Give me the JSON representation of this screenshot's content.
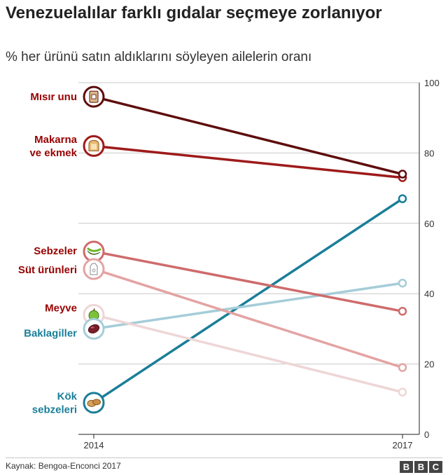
{
  "title": "Venezuelalılar farklı gıdalar seçmeye zorlanıyor",
  "subtitle": "% her ürünü satın aldıklarını söyleyen ailelerin oranı",
  "source": "Kaynak: Bengoa-Enconci 2017",
  "logo": [
    "B",
    "B",
    "C"
  ],
  "colors": {
    "Mısır unu": "#5e0c0c",
    "Makarna ve ekmek": "#9e1a1a",
    "Sebzeler": "#cf6b6b",
    "Süt ürünleri": "#e4a3a3",
    "Meyve": "#eed6d6",
    "Baklagiller": "#a5cdd8",
    "Kök sebzeleri": "#1a7e99",
    "label_red": "#990000",
    "label_teal": "#1a7e99"
  },
  "chart_data": {
    "type": "line",
    "x": [
      2014,
      2017
    ],
    "x_tick_labels": [
      "2014",
      "2017"
    ],
    "ylim": [
      0,
      100
    ],
    "y_ticks": [
      0,
      20,
      40,
      60,
      80,
      100
    ],
    "y_axis_side": "right",
    "grid": true,
    "legend": "direct labels at left with food icons",
    "series": [
      {
        "name": "Mısır unu",
        "label_lines": [
          "Mısır unu"
        ],
        "icon": "flour-bag-icon",
        "values": [
          96,
          74
        ]
      },
      {
        "name": "Makarna ve ekmek",
        "label_lines": [
          "Makarna",
          "ve ekmek"
        ],
        "icon": "bread-icon",
        "values": [
          82,
          73
        ]
      },
      {
        "name": "Sebzeler",
        "label_lines": [
          "Sebzeler"
        ],
        "icon": "pepper-icon",
        "values": [
          52,
          35
        ]
      },
      {
        "name": "Süt ürünleri",
        "label_lines": [
          "Süt ürünleri"
        ],
        "icon": "milk-carton-icon",
        "values": [
          47,
          19
        ]
      },
      {
        "name": "Meyve",
        "label_lines": [
          "Meyve"
        ],
        "icon": "apple-icon",
        "values": [
          34,
          12
        ]
      },
      {
        "name": "Baklagiller",
        "label_lines": [
          "Baklagiller"
        ],
        "icon": "bean-icon",
        "values": [
          30,
          43
        ]
      },
      {
        "name": "Kök sebzeleri",
        "label_lines": [
          "Kök",
          "sebzeleri"
        ],
        "icon": "potato-icon",
        "values": [
          9,
          67
        ]
      }
    ]
  }
}
